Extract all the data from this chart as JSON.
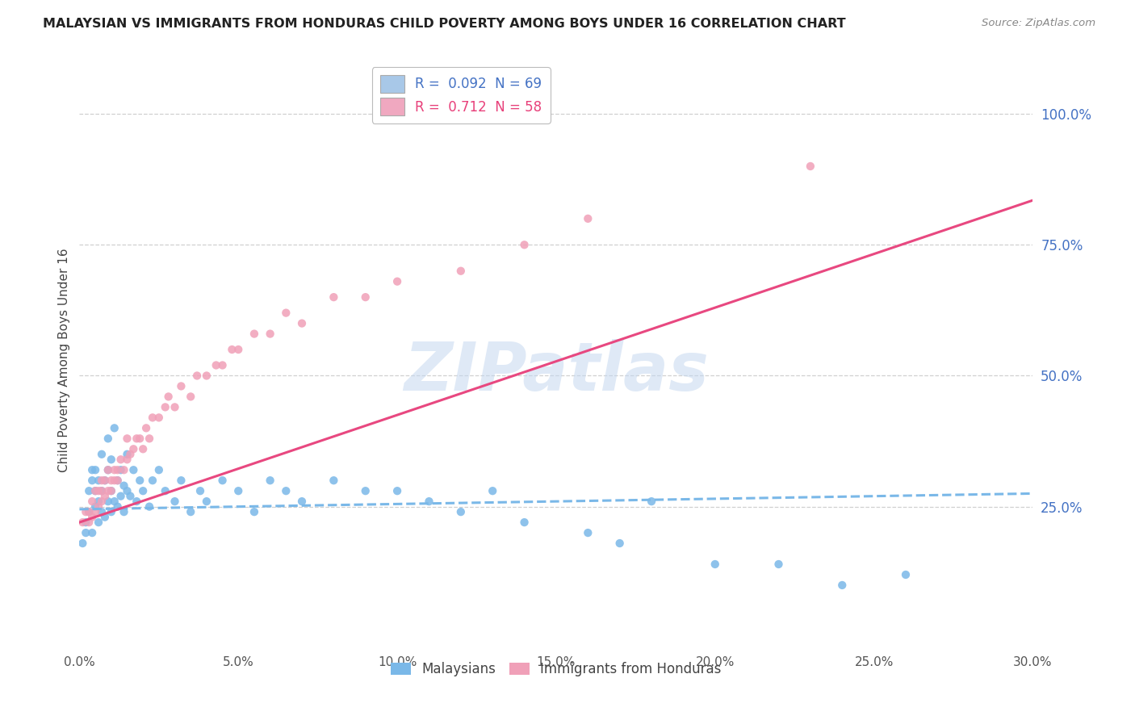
{
  "title": "MALAYSIAN VS IMMIGRANTS FROM HONDURAS CHILD POVERTY AMONG BOYS UNDER 16 CORRELATION CHART",
  "source": "Source: ZipAtlas.com",
  "ylabel": "Child Poverty Among Boys Under 16",
  "ytick_labels": [
    "100.0%",
    "75.0%",
    "50.0%",
    "25.0%"
  ],
  "ytick_values": [
    1.0,
    0.75,
    0.5,
    0.25
  ],
  "xlim": [
    0.0,
    0.3
  ],
  "ylim": [
    -0.02,
    1.08
  ],
  "watermark": "ZIPatlas",
  "legend_top": [
    {
      "label": "R =  0.092  N = 69",
      "color": "#a8c8e8"
    },
    {
      "label": "R =  0.712  N = 58",
      "color": "#f0a8c0"
    }
  ],
  "legend_top_text_colors": [
    "#4472c4",
    "#e8407a"
  ],
  "malaysians_color": "#7ab8e8",
  "honduras_color": "#f0a0b8",
  "line_color_malaysia": "#7ab8e8",
  "line_color_honduras": "#e84880",
  "malaysia_intercept": 0.245,
  "malaysia_slope": 0.1,
  "honduras_intercept": 0.22,
  "honduras_slope": 2.05,
  "malaysia_x": [
    0.001,
    0.002,
    0.002,
    0.003,
    0.003,
    0.004,
    0.004,
    0.004,
    0.005,
    0.005,
    0.005,
    0.006,
    0.006,
    0.006,
    0.007,
    0.007,
    0.007,
    0.008,
    0.008,
    0.009,
    0.009,
    0.009,
    0.01,
    0.01,
    0.01,
    0.011,
    0.011,
    0.012,
    0.012,
    0.013,
    0.013,
    0.014,
    0.014,
    0.015,
    0.015,
    0.016,
    0.017,
    0.018,
    0.019,
    0.02,
    0.022,
    0.023,
    0.025,
    0.027,
    0.03,
    0.032,
    0.035,
    0.038,
    0.04,
    0.045,
    0.05,
    0.055,
    0.06,
    0.065,
    0.07,
    0.08,
    0.09,
    0.1,
    0.11,
    0.12,
    0.13,
    0.14,
    0.16,
    0.17,
    0.18,
    0.2,
    0.22,
    0.24,
    0.26
  ],
  "malaysia_y": [
    0.18,
    0.2,
    0.22,
    0.24,
    0.28,
    0.3,
    0.32,
    0.2,
    0.25,
    0.28,
    0.32,
    0.22,
    0.26,
    0.3,
    0.24,
    0.28,
    0.35,
    0.23,
    0.3,
    0.26,
    0.32,
    0.38,
    0.24,
    0.28,
    0.34,
    0.26,
    0.4,
    0.25,
    0.3,
    0.27,
    0.32,
    0.24,
    0.29,
    0.28,
    0.35,
    0.27,
    0.32,
    0.26,
    0.3,
    0.28,
    0.25,
    0.3,
    0.32,
    0.28,
    0.26,
    0.3,
    0.24,
    0.28,
    0.26,
    0.3,
    0.28,
    0.24,
    0.3,
    0.28,
    0.26,
    0.3,
    0.28,
    0.28,
    0.26,
    0.24,
    0.28,
    0.22,
    0.2,
    0.18,
    0.26,
    0.14,
    0.14,
    0.1,
    0.12
  ],
  "honduras_x": [
    0.001,
    0.002,
    0.003,
    0.003,
    0.004,
    0.004,
    0.005,
    0.005,
    0.006,
    0.006,
    0.007,
    0.007,
    0.007,
    0.008,
    0.008,
    0.009,
    0.009,
    0.01,
    0.01,
    0.011,
    0.011,
    0.012,
    0.012,
    0.013,
    0.014,
    0.015,
    0.015,
    0.016,
    0.017,
    0.018,
    0.019,
    0.02,
    0.021,
    0.022,
    0.023,
    0.025,
    0.027,
    0.028,
    0.03,
    0.032,
    0.035,
    0.037,
    0.04,
    0.043,
    0.045,
    0.048,
    0.05,
    0.055,
    0.06,
    0.065,
    0.07,
    0.08,
    0.09,
    0.1,
    0.12,
    0.14,
    0.16,
    0.23
  ],
  "honduras_y": [
    0.22,
    0.24,
    0.22,
    0.24,
    0.23,
    0.26,
    0.24,
    0.28,
    0.25,
    0.28,
    0.26,
    0.28,
    0.3,
    0.27,
    0.3,
    0.28,
    0.32,
    0.28,
    0.3,
    0.3,
    0.32,
    0.3,
    0.32,
    0.34,
    0.32,
    0.34,
    0.38,
    0.35,
    0.36,
    0.38,
    0.38,
    0.36,
    0.4,
    0.38,
    0.42,
    0.42,
    0.44,
    0.46,
    0.44,
    0.48,
    0.46,
    0.5,
    0.5,
    0.52,
    0.52,
    0.55,
    0.55,
    0.58,
    0.58,
    0.62,
    0.6,
    0.65,
    0.65,
    0.68,
    0.7,
    0.75,
    0.8,
    0.9
  ]
}
